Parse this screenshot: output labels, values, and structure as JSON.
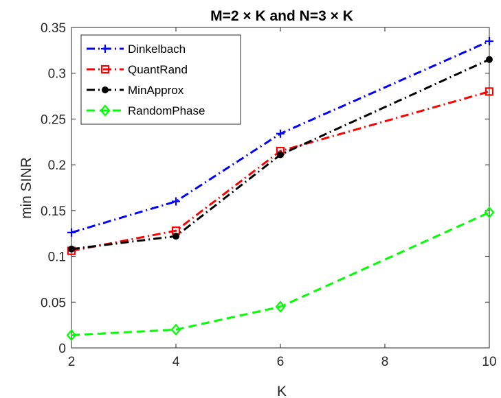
{
  "chart_data": {
    "type": "line",
    "title": "M=2 × K and N=3 × K",
    "xlabel": "K",
    "ylabel": "min SINR",
    "x": [
      2,
      4,
      6,
      10
    ],
    "xlim": [
      2,
      10
    ],
    "ylim": [
      0,
      0.35
    ],
    "xticks": [
      2,
      4,
      6,
      8,
      10
    ],
    "yticks": [
      0,
      0.05,
      0.1,
      0.15,
      0.2,
      0.25,
      0.3,
      0.35
    ],
    "xtick_labels": [
      "2",
      "4",
      "6",
      "8",
      "10"
    ],
    "ytick_labels": [
      "0",
      "0.05",
      "0.1",
      "0.15",
      "0.2",
      "0.25",
      "0.3",
      "0.35"
    ],
    "grid": false,
    "legend_position": "top-left",
    "series": [
      {
        "name": "Dinkelbach",
        "values": [
          0.126,
          0.16,
          0.234,
          0.335
        ],
        "color": "#0000ff",
        "dash": "dash-dot",
        "marker": "plus"
      },
      {
        "name": "QuantRand",
        "values": [
          0.106,
          0.128,
          0.215,
          0.28
        ],
        "color": "#ff0000",
        "dash": "dash-dot",
        "marker": "square"
      },
      {
        "name": "MinApprox",
        "values": [
          0.108,
          0.122,
          0.211,
          0.315
        ],
        "color": "#000000",
        "dash": "dash-dot",
        "marker": "circle"
      },
      {
        "name": "RandomPhase",
        "values": [
          0.014,
          0.02,
          0.045,
          0.148
        ],
        "color": "#00ff00",
        "dash": "dashed",
        "marker": "diamond"
      }
    ]
  }
}
